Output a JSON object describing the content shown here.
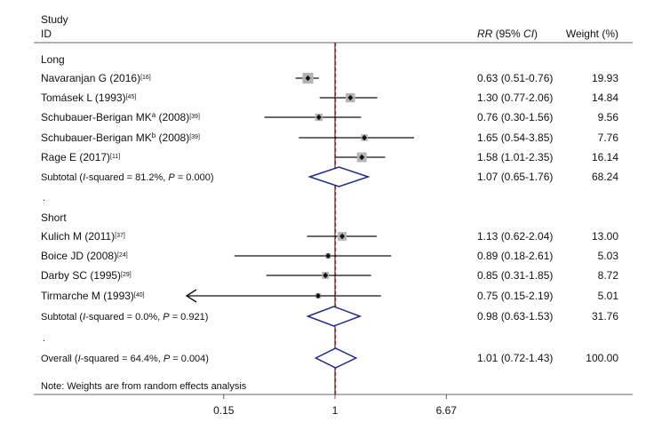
{
  "chart_data": {
    "type": "forest",
    "header": {
      "study_label_line1": "Study",
      "study_label_line2": "ID",
      "rr_label": "RR",
      "ci_label": "(95% CI)",
      "weight_label": "Weight (%)"
    },
    "x_axis": {
      "scale": "log",
      "ticks": [
        {
          "value": 0.15,
          "label": "0.15"
        },
        {
          "value": 1,
          "label": "1"
        },
        {
          "value": 6.67,
          "label": "6.67"
        }
      ],
      "null_line": 1
    },
    "groups": [
      {
        "label": "Long",
        "studies": [
          {
            "name": "Navaranjan G (2016)",
            "ref": "[16]",
            "rr": 0.63,
            "lo": 0.51,
            "hi": 0.76,
            "ci_text": "0.63 (0.51-0.76)",
            "weight": "19.93"
          },
          {
            "name": "Tomásek L (1993)",
            "ref": "[45]",
            "rr": 1.3,
            "lo": 0.77,
            "hi": 2.06,
            "ci_text": "1.30 (0.77-2.06)",
            "weight": "14.84"
          },
          {
            "name": "Schubauer-Berigan MK",
            "sup": "a",
            "year": " (2008)",
            "ref": "[39]",
            "rr": 0.76,
            "lo": 0.3,
            "hi": 1.56,
            "ci_text": "0.76 (0.30-1.56)",
            "weight": "9.56"
          },
          {
            "name": "Schubauer-Berigan MK",
            "sup": "b",
            "year": " (2008)",
            "ref": "[39]",
            "rr": 1.65,
            "lo": 0.54,
            "hi": 3.85,
            "ci_text": "1.65 (0.54-3.85)",
            "weight": "7.76"
          },
          {
            "name": "Rage E (2017)",
            "ref": "[11]",
            "rr": 1.58,
            "lo": 1.01,
            "hi": 2.35,
            "ci_text": "1.58 (1.01-2.35)",
            "weight": "16.14"
          }
        ],
        "subtotal": {
          "pre": "Subtotal (",
          "i_letter": "I",
          "mid": "-squared = 81.2%, ",
          "p_letter": "P",
          "post": " = 0.000)",
          "rr": 1.07,
          "lo": 0.65,
          "hi": 1.76,
          "ci_text": "1.07 (0.65-1.76)",
          "weight": "68.24"
        }
      },
      {
        "label": "Short",
        "studies": [
          {
            "name": "Kulich M (2011)",
            "ref": "[37]",
            "rr": 1.13,
            "lo": 0.62,
            "hi": 2.04,
            "ci_text": "1.13 (0.62-2.04)",
            "weight": "13.00"
          },
          {
            "name": "Boice JD (2008)",
            "ref": "[24]",
            "rr": 0.89,
            "lo": 0.18,
            "hi": 2.61,
            "ci_text": "0.89 (0.18-2.61)",
            "weight": "5.03"
          },
          {
            "name": "Darby SC (1995)",
            "ref": "[29]",
            "rr": 0.85,
            "lo": 0.31,
            "hi": 1.85,
            "ci_text": "0.85 (0.31-1.85)",
            "weight": "8.72"
          },
          {
            "name": "Tirmarche M (1993)",
            "ref": "[40]",
            "rr": 0.75,
            "lo": 0.15,
            "hi": 2.19,
            "ci_text": "0.75 (0.15-2.19)",
            "weight": "5.01",
            "left_arrow": true
          }
        ],
        "subtotal": {
          "pre": "Subtotal (",
          "i_letter": "I",
          "mid": "-squared = 0.0%, ",
          "p_letter": "P",
          "post": " = 0.921)",
          "rr": 0.98,
          "lo": 0.63,
          "hi": 1.53,
          "ci_text": "0.98 (0.63-1.53)",
          "weight": "31.76"
        }
      }
    ],
    "separator": ".",
    "overall": {
      "pre": "Overall (",
      "i_letter": "I",
      "mid": "-squared = 64.4%, ",
      "p_letter": "P",
      "post": " = 0.004)",
      "rr": 1.01,
      "lo": 0.72,
      "hi": 1.43,
      "ci_text": "1.01 (0.72-1.43)",
      "weight": "100.00"
    },
    "note": "Note: Weights are from random effects analysis",
    "colors": {
      "diamond": "#1f2a8a",
      "null_line": "#6b1a1a",
      "dashed_line": "#a0203a",
      "square": "#b4b4b4",
      "text": "#111111"
    }
  }
}
